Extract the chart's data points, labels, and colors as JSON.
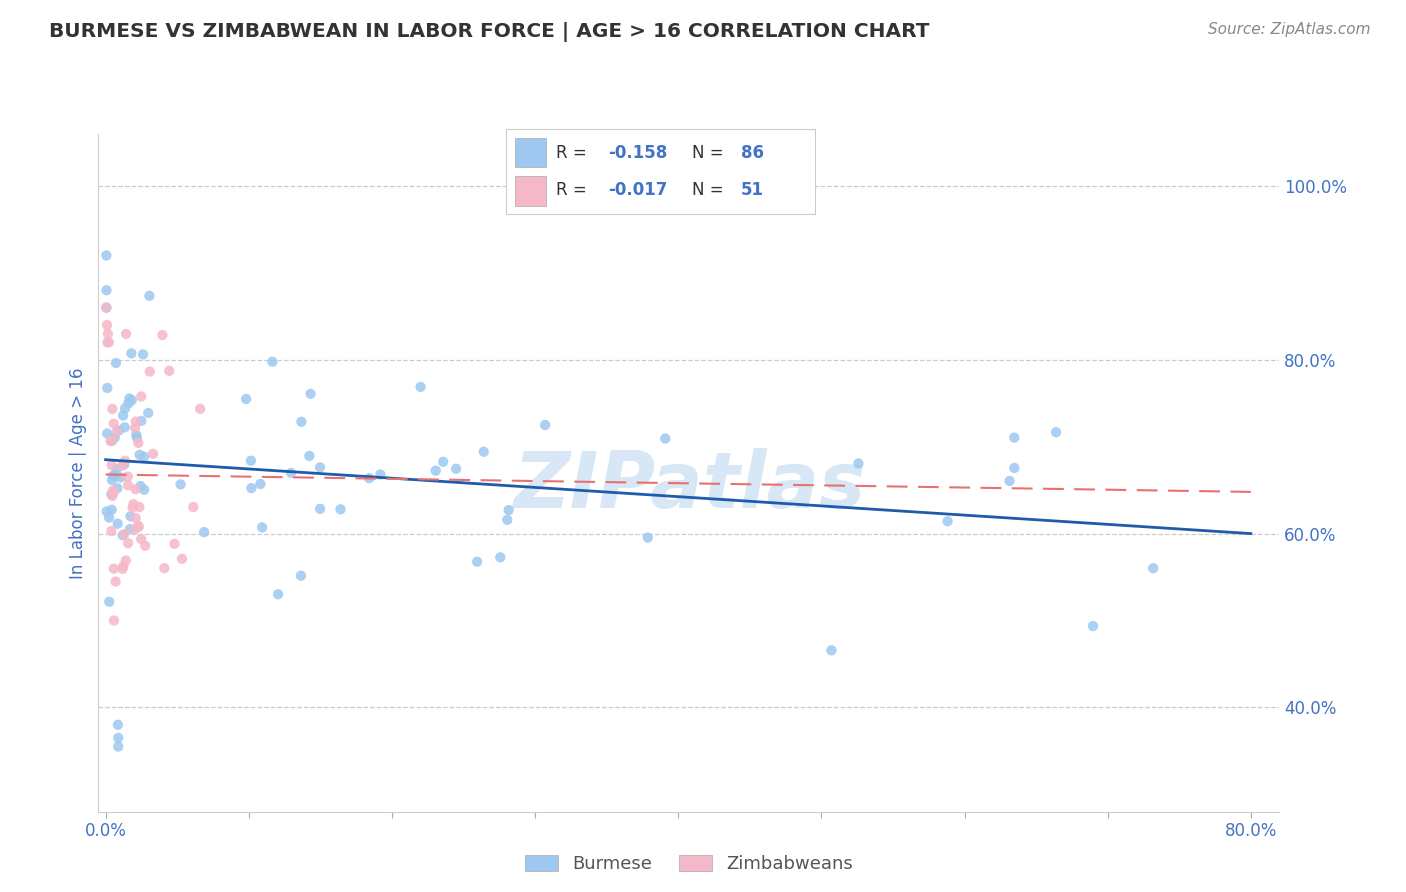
{
  "title": "BURMESE VS ZIMBABWEAN IN LABOR FORCE | AGE > 16 CORRELATION CHART",
  "source": "Source: ZipAtlas.com",
  "ylabel": "In Labor Force | Age > 16",
  "xlim": [
    -0.005,
    0.82
  ],
  "ylim": [
    0.28,
    1.06
  ],
  "xtick_positions": [
    0.0,
    0.8
  ],
  "xticklabels": [
    "0.0%",
    "80.0%"
  ],
  "ytick_positions": [
    0.4,
    0.6,
    0.8,
    1.0
  ],
  "yticklabels": [
    "40.0%",
    "60.0%",
    "80.0%",
    "100.0%"
  ],
  "burmese_color": "#9ec8f0",
  "zimbabwean_color": "#f5b8c8",
  "burmese_line_color": "#1f5aad",
  "zimbabwean_line_color": "#e87070",
  "burmese_line_start_y": 0.685,
  "burmese_line_end_y": 0.6,
  "zimbabwean_line_start_y": 0.668,
  "zimbabwean_line_end_y": 0.648,
  "R_burmese": -0.158,
  "N_burmese": 86,
  "R_zimbabwean": -0.017,
  "N_zimbabwean": 51,
  "watermark": "ZIPatlas",
  "legend_label_burmese": "Burmese",
  "legend_label_zimbabwean": "Zimbabweans",
  "background_color": "#ffffff",
  "grid_color": "#cccccc",
  "title_color": "#333333",
  "axis_color": "#4472c4",
  "tick_color": "#4472c4",
  "legend_box_color": "#4472c4",
  "source_color": "#888888"
}
